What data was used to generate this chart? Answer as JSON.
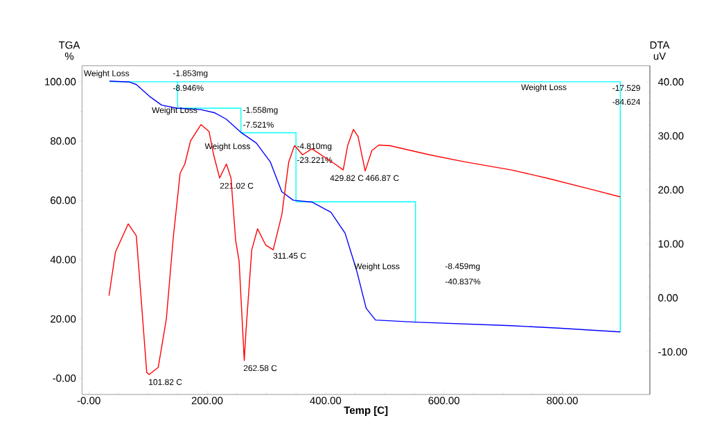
{
  "chart_data": {
    "type": "line",
    "xlabel": "Temp [C]",
    "ylabel": "TGA %",
    "y2label": "DTA uV",
    "xlim": [
      -11.5,
      948
    ],
    "ylim": [
      -5.5,
      105.4
    ],
    "y2lim": [
      -17.9,
      43.0
    ],
    "xticks": [
      {
        "value": 0,
        "label": "-0.00"
      },
      {
        "value": 200,
        "label": "200.00"
      },
      {
        "value": 400,
        "label": "400.00"
      },
      {
        "value": 600,
        "label": "600.00"
      },
      {
        "value": 800,
        "label": "800.00"
      }
    ],
    "yticks": [
      {
        "value": 0,
        "label": "-0.00"
      },
      {
        "value": 20,
        "label": "20.00"
      },
      {
        "value": 40,
        "label": "40.00"
      },
      {
        "value": 60,
        "label": "60.00"
      },
      {
        "value": 80,
        "label": "80.00"
      },
      {
        "value": 100,
        "label": "100.00"
      }
    ],
    "y2ticks": [
      {
        "value": -10,
        "label": "-10.00"
      },
      {
        "value": 0,
        "label": "0.00"
      },
      {
        "value": 10,
        "label": "10.00"
      },
      {
        "value": 20,
        "label": "20.00"
      },
      {
        "value": 30,
        "label": "30.00"
      },
      {
        "value": 40,
        "label": "40.00"
      }
    ],
    "series": [
      {
        "color": "#00ffff",
        "x": [
          35,
          898,
          898
        ],
        "values": [
          100,
          100,
          15.6
        ]
      },
      {
        "color": "#00ffff",
        "x": [
          150,
          150,
          257,
          257,
          350,
          350,
          552,
          552
        ],
        "values": [
          100,
          91.1,
          91.1,
          82.8,
          82.8,
          59.5,
          59.5,
          18.9
        ]
      },
      {
        "color": "#0000ff",
        "x": [
          35,
          68.5,
          80,
          103.6,
          123,
          148.5,
          189.5,
          213,
          232,
          257.7,
          283,
          306.5,
          326,
          345.5,
          376.8,
          409,
          433,
          452.8,
          468.6,
          484.4,
          551.6,
          713.8,
          793,
          898
        ],
        "values": [
          100.2,
          99.9,
          99.1,
          94.9,
          92.1,
          91.1,
          90.6,
          89.5,
          87.4,
          82.8,
          79.3,
          73.0,
          62.9,
          60.0,
          59.4,
          56.0,
          48.9,
          36.1,
          23.6,
          19.6,
          18.9,
          17.7,
          16.9,
          15.6
        ]
      },
      {
        "color": "#ff0000",
        "axis": "y2",
        "x": [
          34.1,
          45,
          66.5,
          80.2,
          88,
          97.8,
          101.8,
          117.2,
          131,
          142.6,
          154.3,
          162.2,
          171.9,
          189.5,
          203.2,
          210.9,
          221.0,
          232.4,
          240.2,
          248,
          253.9,
          262.6,
          265.6,
          275.3,
          285.1,
          298.7,
          311.5,
          326.1,
          337.8,
          347.5,
          361.2,
          376.8,
          415.8,
          429.8,
          437.3,
          447,
          454.9,
          466.9,
          478.3,
          490,
          508.2,
          539.8,
          575.4,
          634.8,
          713.8,
          773.2,
          852.3,
          898
        ],
        "values": [
          0.4,
          8.5,
          13.7,
          11.5,
          0.4,
          -13.8,
          -14.2,
          -12.9,
          -3.9,
          11.1,
          23.1,
          24.8,
          29.1,
          32.1,
          30.8,
          26.5,
          22.2,
          24.8,
          22.2,
          10.7,
          6.8,
          -11.6,
          -6.0,
          8.9,
          12.8,
          9.8,
          8.9,
          15.4,
          25.2,
          28.2,
          26.5,
          27.6,
          24.8,
          23.7,
          28.2,
          31.2,
          29.9,
          23.5,
          27.3,
          28.3,
          28.2,
          27.4,
          26.5,
          25.2,
          23.7,
          22.2,
          20.0,
          18.7
        ]
      }
    ],
    "annotations": [
      "Weight Loss",
      "-1.853mg",
      "-8.946%",
      "Weight Loss",
      "-1.558mg",
      "-7.521%",
      "Weight Loss",
      "-4.810mg",
      "-23.221%",
      "Weight Loss",
      "-8.459mg",
      "-40.837%",
      "Weight Loss",
      "-17.529",
      "-84.624",
      "101.82 C",
      "221.02 C",
      "262.58 C",
      "311.45 C",
      "429.82 C",
      "466.87 C"
    ]
  }
}
